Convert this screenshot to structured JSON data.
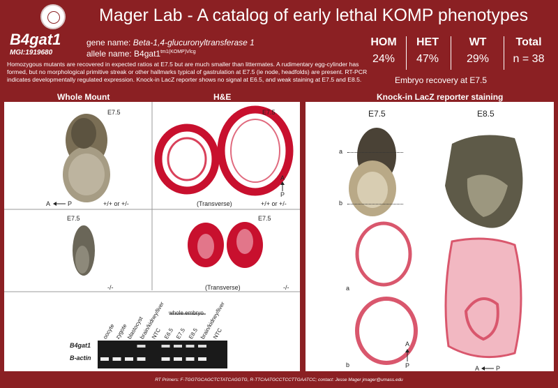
{
  "header": {
    "title": "Mager Lab - A catalog of early lethal KOMP phenotypes",
    "gene_symbol": "B4gat1",
    "mgi": "MGI:1919680",
    "gene_name_label": "gene name: ",
    "gene_name": "Beta-1,4-glucuronyltransferase 1",
    "allele_label": "allele name: B4gat1",
    "allele_sup": "tm1(KOMP)Vlcg"
  },
  "description": "Homozygous mutants are recovered in expected ratios at E7.5 but are much smaller than littermates.  A rudimentary egg-cylinder has formed, but no morphological primitive streak or other hallmarks typical of gastrulation at E7.5 (ie node, headfolds) are present. RT-PCR indicates developmentally regulated expression.  Knock-in LacZ reporter shows no signal at E6.5, and weak staining at E7.5 and E8.5.",
  "stats": {
    "hom_label": "HOM",
    "hom_value": "24%",
    "het_label": "HET",
    "het_value": "47%",
    "wt_label": "WT",
    "wt_value": "29%",
    "total_label": "Total",
    "total_value": "n = 38",
    "recovery": "Embryo recovery at E7.5"
  },
  "sections": {
    "whole_mount": "Whole Mount",
    "he": "H&E",
    "lacz": "Knock-in LacZ reporter staining"
  },
  "left_panel": {
    "stage_a": "E7.5",
    "stage_b": "E7.5",
    "stage_c": "E7.5",
    "stage_d": "E7.5",
    "axis_ap": "A",
    "axis_ap_p": "P",
    "geno_top_wm": "+/+ or +/-",
    "geno_top_he": "+/+ or +/-",
    "transverse_top": "(Transverse)",
    "transverse_bottom": "(Transverse)",
    "geno_bottom_wm": "-/-",
    "geno_bottom_he": "-/-",
    "axis_side_a": "A",
    "axis_side_p": "P"
  },
  "gel": {
    "lanes": [
      "oocyte",
      "zygote",
      "blastocyst",
      "brain/kidney/liver",
      "NTC",
      "E6.5",
      "E7.5",
      "E8.5",
      "brain/kidney/liver",
      "NTC"
    ],
    "group_label": "whole embryo",
    "row1": "B4gat1",
    "row2": "B-actin"
  },
  "right_panel": {
    "stage_1": "E7.5",
    "stage_2": "E8.5",
    "marker_a": "a",
    "marker_b": "b",
    "section_a": "a",
    "section_b": "b",
    "axis_a": "A",
    "axis_p": "P",
    "axis2_a": "A",
    "axis2_p": "P"
  },
  "footer": "RT Primers: F-TGGTGCAGCTCTATCAGGTG, R-TTCAATGCCTCCTTGAATCC; contact: Jesse Mager jmager@umass.edu",
  "colors": {
    "background": "#8b2023",
    "he_stain": "#c8102e",
    "panel": "#ffffff"
  }
}
